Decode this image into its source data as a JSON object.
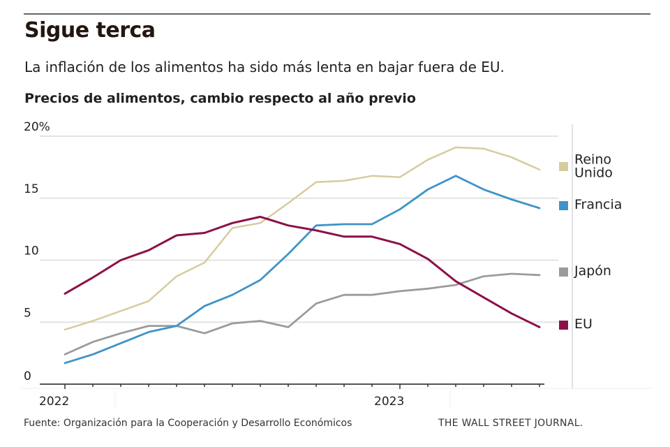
{
  "header": {
    "title": "Sigue terca",
    "subtitle": "La inflación de los alimentos ha sido más lenta en bajar fuera de EU.",
    "chart_heading": "Precios de alimentos, cambio respecto al año previo"
  },
  "footer": {
    "source": "Fuente: Organización para la Cooperación y Desarrollo Económicos",
    "brand": "THE WALL STREET JOURNAL."
  },
  "chart_data": {
    "type": "line",
    "title": "Precios de alimentos, cambio respecto al año previo",
    "xlabel": "",
    "ylabel": "",
    "x": [
      "2022-01",
      "2022-02",
      "2022-03",
      "2022-04",
      "2022-05",
      "2022-06",
      "2022-07",
      "2022-08",
      "2022-09",
      "2022-10",
      "2022-11",
      "2022-12",
      "2023-01",
      "2023-02",
      "2023-03",
      "2023-04",
      "2023-05",
      "2023-06"
    ],
    "x_tick_labels": [
      {
        "index": 0,
        "label": "2022"
      },
      {
        "index": 12,
        "label": "2023"
      }
    ],
    "y_ticks": [
      0,
      5,
      10,
      15,
      20
    ],
    "y_tick_labels": [
      "0",
      "5",
      "10",
      "15",
      "20%"
    ],
    "ylim": [
      0,
      20
    ],
    "grid": true,
    "legend_placement": "right",
    "series": [
      {
        "name": "Reino Unido",
        "label_lines": [
          "Reino",
          "Unido"
        ],
        "color": "#d6cc9e",
        "values": [
          4.4,
          5.1,
          5.9,
          6.7,
          8.7,
          9.8,
          12.6,
          13.0,
          14.6,
          16.3,
          16.4,
          16.8,
          16.7,
          18.1,
          19.1,
          19.0,
          18.3,
          17.3
        ]
      },
      {
        "name": "Francia",
        "label_lines": [
          "Francia"
        ],
        "color": "#3f93c8",
        "values": [
          1.7,
          2.4,
          3.3,
          4.2,
          4.7,
          6.3,
          7.2,
          8.4,
          10.5,
          12.8,
          12.9,
          12.9,
          14.1,
          15.7,
          16.8,
          15.7,
          14.9,
          14.2
        ]
      },
      {
        "name": "Japón",
        "label_lines": [
          "Japón"
        ],
        "color": "#9b9b9b",
        "values": [
          2.4,
          3.4,
          4.1,
          4.7,
          4.7,
          4.1,
          4.9,
          5.1,
          4.6,
          6.5,
          7.2,
          7.2,
          7.5,
          7.7,
          8.0,
          8.7,
          8.9,
          8.8
        ]
      },
      {
        "name": "EU",
        "label_lines": [
          "EU"
        ],
        "color": "#8c1048",
        "values": [
          7.3,
          8.6,
          10.0,
          10.8,
          12.0,
          12.2,
          13.0,
          13.5,
          12.8,
          12.4,
          11.9,
          11.9,
          11.3,
          10.1,
          8.3,
          7.0,
          5.7,
          4.6
        ]
      }
    ]
  }
}
